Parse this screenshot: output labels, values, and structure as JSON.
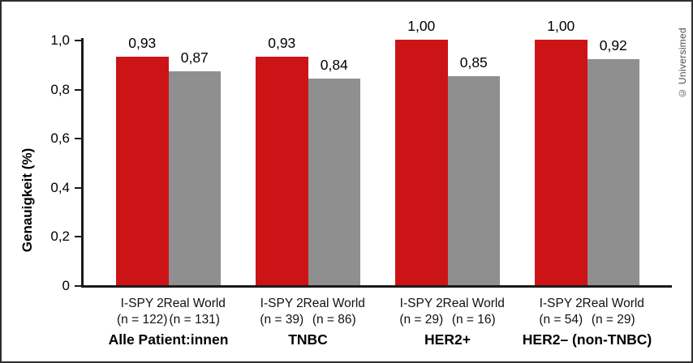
{
  "credit": "© Universimed",
  "chart_data": {
    "type": "bar",
    "title": "",
    "ylabel": "Genauigkeit (%)",
    "xlabel": "",
    "ylim": [
      0,
      1.0
    ],
    "grid": false,
    "legend_position": "none",
    "ytick_values": [
      0,
      0.2,
      0.4,
      0.6,
      0.8,
      1.0
    ],
    "ytick_labels": [
      "0",
      "0,2",
      "0,4",
      "0,6",
      "0,8",
      "1,0"
    ],
    "series_colors": {
      "I-SPY 2": "#cc1417",
      "Real World": "#8f8f8f"
    },
    "groups": [
      {
        "label": "Alle Patient:innen",
        "bars": [
          {
            "series": "I-SPY 2",
            "n_label": "(n = 122)",
            "value": 0.93,
            "value_label": "0,93",
            "color": "#cc1417"
          },
          {
            "series": "Real World",
            "n_label": "(n = 131)",
            "value": 0.87,
            "value_label": "0,87",
            "color": "#8f8f8f"
          }
        ]
      },
      {
        "label": "TNBC",
        "bars": [
          {
            "series": "I-SPY 2",
            "n_label": "(n = 39)",
            "value": 0.93,
            "value_label": "0,93",
            "color": "#cc1417"
          },
          {
            "series": "Real World",
            "n_label": "(n = 86)",
            "value": 0.84,
            "value_label": "0,84",
            "color": "#8f8f8f"
          }
        ]
      },
      {
        "label": "HER2+",
        "bars": [
          {
            "series": "I-SPY 2",
            "n_label": "(n = 29)",
            "value": 1.0,
            "value_label": "1,00",
            "color": "#cc1417"
          },
          {
            "series": "Real World",
            "n_label": "(n = 16)",
            "value": 0.85,
            "value_label": "0,85",
            "color": "#8f8f8f"
          }
        ]
      },
      {
        "label": "HER2– (non-TNBC)",
        "bars": [
          {
            "series": "I-SPY 2",
            "n_label": "(n = 54)",
            "value": 1.0,
            "value_label": "1,00",
            "color": "#cc1417"
          },
          {
            "series": "Real World",
            "n_label": "(n = 29)",
            "value": 0.92,
            "value_label": "0,92",
            "color": "#8f8f8f"
          }
        ]
      }
    ]
  }
}
